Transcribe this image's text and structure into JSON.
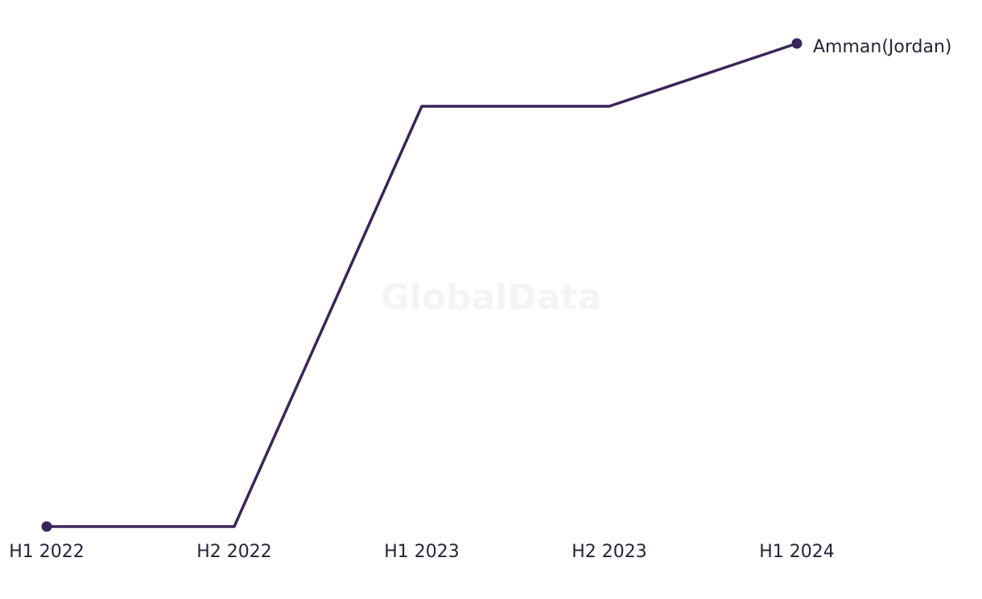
{
  "chart_data": {
    "type": "line",
    "watermark": "GlobalData",
    "categories": [
      "H1 2022",
      "H2 2022",
      "H1 2023",
      "H2 2023",
      "H1 2024"
    ],
    "series": [
      {
        "name": "Amman(Jordan)",
        "color": "#3a2559",
        "values": [
          0,
          0,
          87,
          87,
          100
        ]
      }
    ]
  }
}
